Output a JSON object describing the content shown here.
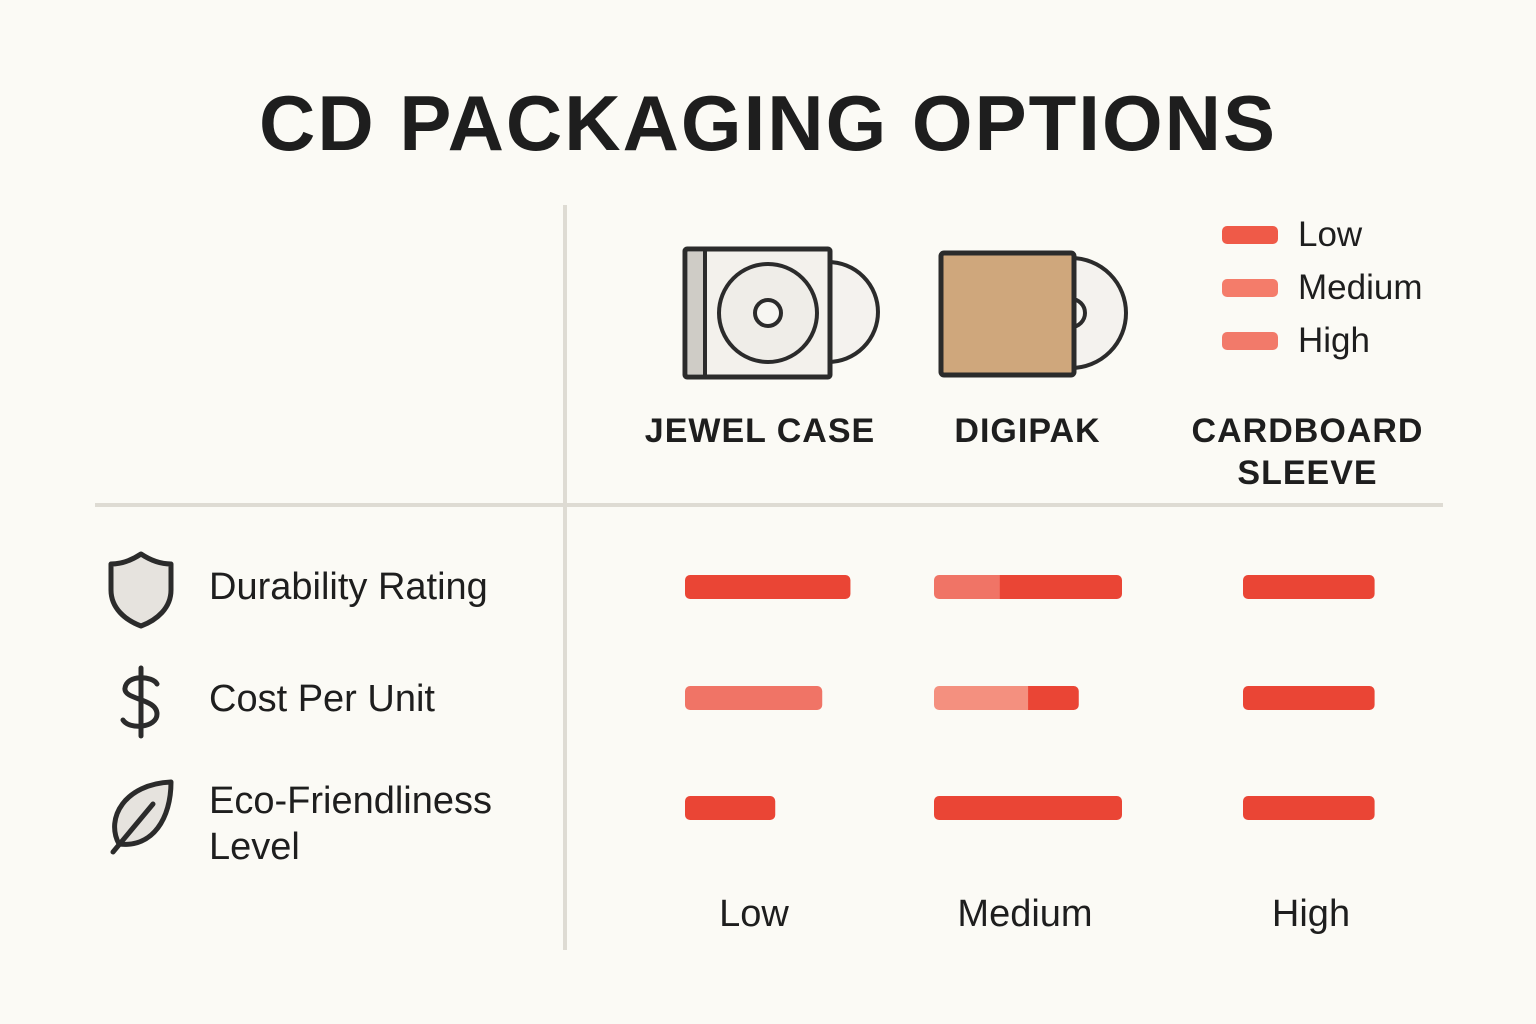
{
  "title": "CD PACKAGING OPTIONS",
  "legend": [
    {
      "label": "Low",
      "color": "#ef5a48"
    },
    {
      "label": "Medium",
      "color": "#f47c6a"
    },
    {
      "label": "High",
      "color": "#f27a6a"
    }
  ],
  "columns": [
    {
      "name_lines": [
        "JEWEL CASE"
      ],
      "icon": "jewel-case-icon"
    },
    {
      "name_lines": [
        "DIGIPAK"
      ],
      "icon": "digipak-icon"
    },
    {
      "name_lines": [
        "CARDBOARD",
        "SLEEVE"
      ],
      "icon": ""
    }
  ],
  "metrics": [
    {
      "label_lines": [
        "Durability Rating"
      ],
      "icon": "shield-icon"
    },
    {
      "label_lines": [
        "Cost Per Unit"
      ],
      "icon": "dollar-icon"
    },
    {
      "label_lines": [
        "Eco-Friendliness",
        "Level"
      ],
      "icon": "leaf-icon"
    }
  ],
  "scale_labels": [
    "Low",
    "Medium",
    "High"
  ],
  "colors": {
    "strong": "#ea4535",
    "light": "#f07466",
    "pale": "#f4907f",
    "divider": "#dedbd3",
    "background": "#fbfaf5",
    "cardboard": "#cfa77c"
  },
  "chart_data": {
    "type": "bar",
    "orientation": "horizontal",
    "title": "CD PACKAGING OPTIONS",
    "categories": [
      "JEWEL CASE",
      "DIGIPAK",
      "CARDBOARD SLEEVE"
    ],
    "metrics": [
      "Durability Rating",
      "Cost Per Unit",
      "Eco-Friendliness Level"
    ],
    "values": [
      [
        0.88,
        0.73,
        0.48
      ],
      [
        1.0,
        0.77,
        1.0
      ],
      [
        0.7,
        0.7,
        0.7
      ]
    ],
    "segments": [
      [
        [
          {
            "fraction": 1.0,
            "tone": "strong"
          }
        ],
        [
          {
            "fraction": 1.0,
            "tone": "light"
          }
        ],
        [
          {
            "fraction": 1.0,
            "tone": "strong"
          }
        ]
      ],
      [
        [
          {
            "fraction": 0.35,
            "tone": "light"
          },
          {
            "fraction": 0.65,
            "tone": "strong"
          }
        ],
        [
          {
            "fraction": 0.65,
            "tone": "pale"
          },
          {
            "fraction": 0.35,
            "tone": "strong"
          }
        ],
        [
          {
            "fraction": 1.0,
            "tone": "strong"
          }
        ]
      ],
      [
        [
          {
            "fraction": 1.0,
            "tone": "strong"
          }
        ],
        [
          {
            "fraction": 1.0,
            "tone": "strong"
          }
        ],
        [
          {
            "fraction": 1.0,
            "tone": "strong"
          }
        ]
      ]
    ],
    "legend_position": "top-right",
    "grid": false
  }
}
